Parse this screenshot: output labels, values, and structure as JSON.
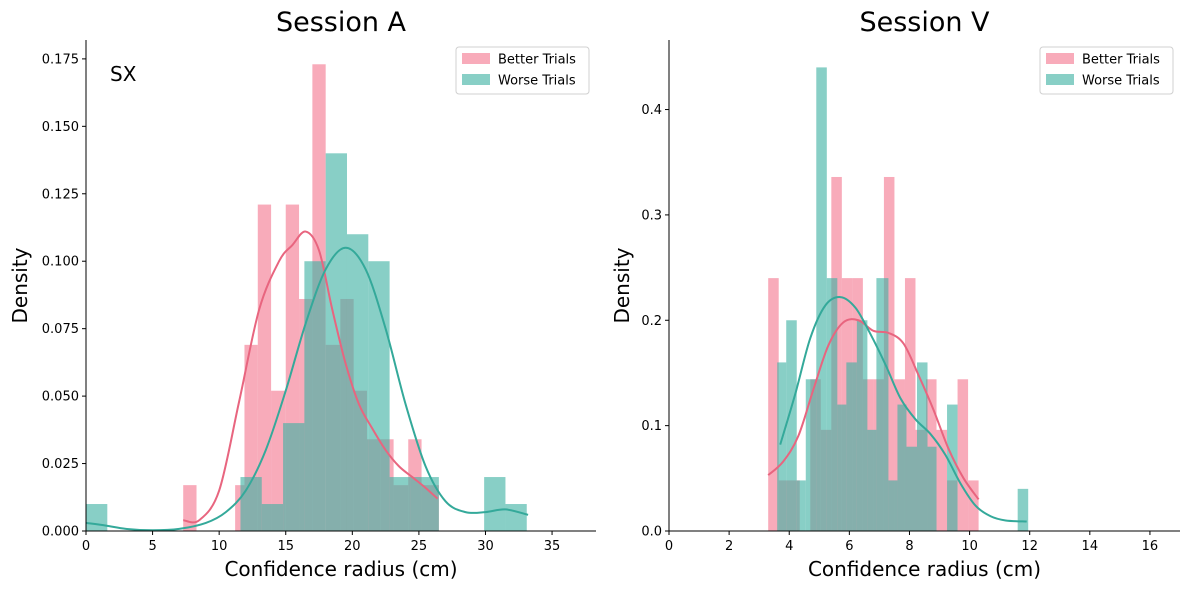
{
  "colors": {
    "better_fill": "#f4778f",
    "better_line": "#e8657f",
    "worse_fill": "#3fb2a3",
    "worse_line": "#34a99a"
  },
  "chart_data": [
    {
      "type": "histogram",
      "title": "Session A",
      "annotation": "SX",
      "xlabel": "Confidence radius (cm)",
      "ylabel": "Density",
      "xlim": [
        0,
        38.3
      ],
      "ylim": [
        0,
        0.182
      ],
      "xticks": [
        0,
        5,
        10,
        15,
        20,
        25,
        30,
        35
      ],
      "xtick_labels": [
        "0",
        "5",
        "10",
        "15",
        "20",
        "25",
        "30",
        "35"
      ],
      "yticks": [
        0,
        0.025,
        0.05,
        0.075,
        0.1,
        0.125,
        0.15,
        0.175
      ],
      "ytick_labels": [
        "0.000",
        "0.025",
        "0.050",
        "0.075",
        "0.100",
        "0.125",
        "0.150",
        "0.175"
      ],
      "legend": {
        "position": "upper right",
        "entries": [
          "Better Trials",
          "Worse Trials"
        ]
      },
      "series": [
        {
          "name": "Better Trials",
          "bins": [
            [
              7.3,
              8.3,
              0.017
            ],
            [
              11.2,
              11.9,
              0.017
            ],
            [
              11.9,
              12.9,
              0.069
            ],
            [
              12.9,
              13.9,
              0.121
            ],
            [
              13.9,
              15.0,
              0.052
            ],
            [
              15.0,
              16.0,
              0.121
            ],
            [
              16.0,
              17.0,
              0.086
            ],
            [
              17.0,
              18.0,
              0.173
            ],
            [
              18.0,
              19.1,
              0.069
            ],
            [
              19.1,
              20.1,
              0.086
            ],
            [
              20.1,
              21.1,
              0.052
            ],
            [
              21.1,
              22.1,
              0.034
            ],
            [
              22.1,
              23.1,
              0.034
            ],
            [
              23.1,
              24.2,
              0.017
            ],
            [
              24.2,
              25.2,
              0.034
            ],
            [
              25.2,
              26.5,
              0.017
            ]
          ],
          "kde": [
            [
              7.3,
              0.004
            ],
            [
              8.5,
              0.004
            ],
            [
              10.0,
              0.015
            ],
            [
              11.5,
              0.048
            ],
            [
              13.0,
              0.082
            ],
            [
              14.5,
              0.1
            ],
            [
              15.5,
              0.106
            ],
            [
              16.5,
              0.111
            ],
            [
              17.5,
              0.104
            ],
            [
              18.5,
              0.082
            ],
            [
              19.5,
              0.062
            ],
            [
              20.5,
              0.047
            ],
            [
              21.5,
              0.038
            ],
            [
              22.5,
              0.03
            ],
            [
              23.5,
              0.024
            ],
            [
              24.5,
              0.02
            ],
            [
              25.5,
              0.016
            ],
            [
              26.4,
              0.012
            ]
          ]
        },
        {
          "name": "Worse Trials",
          "bins": [
            [
              0,
              1.6,
              0.01
            ],
            [
              11.6,
              13.2,
              0.02
            ],
            [
              13.2,
              14.8,
              0.01
            ],
            [
              14.8,
              16.4,
              0.04
            ],
            [
              16.4,
              18.0,
              0.1
            ],
            [
              18.0,
              19.6,
              0.14
            ],
            [
              19.6,
              21.2,
              0.11
            ],
            [
              21.2,
              22.8,
              0.1
            ],
            [
              22.8,
              24.4,
              0.02
            ],
            [
              24.4,
              26.5,
              0.02
            ],
            [
              29.9,
              31.5,
              0.02
            ],
            [
              31.5,
              33.1,
              0.01
            ]
          ],
          "kde": [
            [
              0,
              0.003
            ],
            [
              1.5,
              0.002
            ],
            [
              3.0,
              0.0008
            ],
            [
              5.0,
              0.0003
            ],
            [
              7.0,
              0.0008
            ],
            [
              9.0,
              0.003
            ],
            [
              10.5,
              0.007
            ],
            [
              12.0,
              0.015
            ],
            [
              13.5,
              0.03
            ],
            [
              15.0,
              0.052
            ],
            [
              16.5,
              0.077
            ],
            [
              18.0,
              0.097
            ],
            [
              19.5,
              0.105
            ],
            [
              21.0,
              0.097
            ],
            [
              22.5,
              0.075
            ],
            [
              24.0,
              0.047
            ],
            [
              25.5,
              0.024
            ],
            [
              27.0,
              0.011
            ],
            [
              28.5,
              0.007
            ],
            [
              30.0,
              0.007
            ],
            [
              31.5,
              0.008
            ],
            [
              33.2,
              0.006
            ]
          ]
        }
      ]
    },
    {
      "type": "histogram",
      "title": "Session V",
      "xlabel": "Confidence radius (cm)",
      "ylabel": "Density",
      "xlim": [
        0,
        17
      ],
      "ylim": [
        0,
        0.466
      ],
      "xticks": [
        0,
        2,
        4,
        6,
        8,
        10,
        12,
        14,
        16
      ],
      "xtick_labels": [
        "0",
        "2",
        "4",
        "6",
        "8",
        "10",
        "12",
        "14",
        "16"
      ],
      "yticks": [
        0,
        0.1,
        0.2,
        0.3,
        0.4
      ],
      "ytick_labels": [
        "0.0",
        "0.1",
        "0.2",
        "0.3",
        "0.4"
      ],
      "legend": {
        "position": "upper right",
        "entries": [
          "Better Trials",
          "Worse Trials"
        ]
      },
      "series": [
        {
          "name": "Better Trials",
          "bins": [
            [
              3.3,
              3.65,
              0.24
            ],
            [
              3.65,
              4.35,
              0.048
            ],
            [
              4.35,
              4.7,
              0.0
            ],
            [
              4.7,
              5.05,
              0.144
            ],
            [
              5.05,
              5.4,
              0.096
            ],
            [
              5.4,
              5.75,
              0.336
            ],
            [
              5.75,
              6.1,
              0.24
            ],
            [
              6.1,
              6.45,
              0.24
            ],
            [
              6.45,
              6.8,
              0.144
            ],
            [
              6.8,
              7.15,
              0.144
            ],
            [
              7.15,
              7.5,
              0.336
            ],
            [
              7.5,
              7.85,
              0.144
            ],
            [
              7.85,
              8.2,
              0.24
            ],
            [
              8.2,
              8.55,
              0.096
            ],
            [
              8.55,
              8.9,
              0.144
            ],
            [
              8.9,
              9.25,
              0.096
            ],
            [
              9.25,
              9.6,
              0.048
            ],
            [
              9.6,
              9.95,
              0.144
            ],
            [
              9.95,
              10.3,
              0.048
            ]
          ],
          "kde": [
            [
              3.3,
              0.053
            ],
            [
              3.8,
              0.066
            ],
            [
              4.3,
              0.09
            ],
            [
              4.8,
              0.134
            ],
            [
              5.3,
              0.176
            ],
            [
              5.8,
              0.198
            ],
            [
              6.3,
              0.2
            ],
            [
              6.8,
              0.19
            ],
            [
              7.3,
              0.188
            ],
            [
              7.8,
              0.178
            ],
            [
              8.3,
              0.148
            ],
            [
              8.8,
              0.115
            ],
            [
              9.3,
              0.078
            ],
            [
              9.8,
              0.05
            ],
            [
              10.3,
              0.03
            ]
          ]
        },
        {
          "name": "Worse Trials",
          "bins": [
            [
              3.6,
              3.9,
              0.16
            ],
            [
              3.9,
              4.25,
              0.2
            ],
            [
              4.25,
              4.55,
              0.048
            ],
            [
              4.55,
              4.9,
              0.144
            ],
            [
              4.9,
              5.25,
              0.44
            ],
            [
              5.25,
              5.6,
              0.24
            ],
            [
              5.6,
              5.9,
              0.12
            ],
            [
              5.9,
              6.25,
              0.16
            ],
            [
              6.25,
              6.6,
              0.2
            ],
            [
              6.6,
              6.9,
              0.096
            ],
            [
              6.9,
              7.3,
              0.24
            ],
            [
              7.3,
              7.6,
              0.048
            ],
            [
              7.6,
              7.9,
              0.12
            ],
            [
              7.9,
              8.25,
              0.08
            ],
            [
              8.25,
              8.6,
              0.16
            ],
            [
              8.6,
              8.9,
              0.08
            ],
            [
              8.9,
              9.25,
              0.0
            ],
            [
              9.25,
              9.6,
              0.12
            ],
            [
              9.6,
              9.95,
              0.0
            ],
            [
              11.6,
              11.95,
              0.04
            ]
          ],
          "kde": [
            [
              3.7,
              0.082
            ],
            [
              4.2,
              0.13
            ],
            [
              4.7,
              0.183
            ],
            [
              5.2,
              0.214
            ],
            [
              5.7,
              0.222
            ],
            [
              6.2,
              0.212
            ],
            [
              6.7,
              0.187
            ],
            [
              7.2,
              0.158
            ],
            [
              7.7,
              0.126
            ],
            [
              8.2,
              0.106
            ],
            [
              8.7,
              0.092
            ],
            [
              9.2,
              0.072
            ],
            [
              9.7,
              0.045
            ],
            [
              10.2,
              0.024
            ],
            [
              10.7,
              0.014
            ],
            [
              11.2,
              0.01
            ],
            [
              11.9,
              0.009
            ]
          ]
        }
      ]
    }
  ]
}
